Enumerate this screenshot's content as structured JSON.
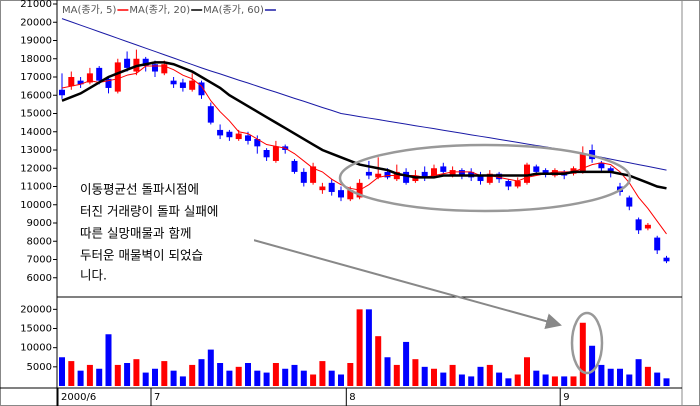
{
  "chart_data": [
    {
      "type": "candlestick",
      "categories": [
        "2000/6",
        null,
        null,
        null,
        null,
        null,
        null,
        null,
        null,
        null,
        "7",
        null,
        null,
        null,
        null,
        null,
        null,
        null,
        null,
        null,
        null,
        null,
        null,
        null,
        null,
        null,
        null,
        null,
        null,
        null,
        null,
        "8",
        null,
        null,
        null,
        null,
        null,
        null,
        null,
        null,
        null,
        null,
        null,
        null,
        null,
        null,
        null,
        null,
        null,
        null,
        null,
        null,
        null,
        null,
        "9",
        null,
        null,
        null,
        null,
        null,
        null,
        null,
        null,
        null,
        null,
        null
      ],
      "open": [
        16300,
        16500,
        16800,
        16700,
        17500,
        16900,
        16200,
        18000,
        17300,
        18000,
        17700,
        17200,
        16800,
        16700,
        16300,
        16700,
        15400,
        14100,
        14000,
        13600,
        13800,
        13600,
        13000,
        12400,
        13200,
        12400,
        11800,
        11200,
        10800,
        11200,
        10800,
        10300,
        10400,
        11800,
        11500,
        11800,
        11400,
        11800,
        11300,
        11800,
        11600,
        12100,
        11600,
        11900,
        11800,
        11600,
        11200,
        11700,
        11300,
        11000,
        11200,
        12100,
        11900,
        11600,
        11800,
        11700,
        11800,
        13000,
        12300,
        12000,
        11000,
        10400,
        9200,
        8700,
        8200,
        7100
      ],
      "high": [
        17200,
        17300,
        17000,
        17500,
        17600,
        17000,
        18000,
        18400,
        18500,
        18100,
        17900,
        17900,
        17000,
        16900,
        17200,
        16800,
        15600,
        14400,
        14100,
        14100,
        14000,
        13800,
        13100,
        13500,
        13300,
        12500,
        12000,
        12300,
        11200,
        11400,
        11000,
        11000,
        11400,
        12400,
        12600,
        12000,
        12200,
        12000,
        11900,
        12100,
        12200,
        12300,
        12100,
        12000,
        12000,
        11800,
        11900,
        11800,
        11400,
        11500,
        12300,
        12200,
        12000,
        12000,
        11900,
        12100,
        13200,
        13300,
        12400,
        12100,
        11200,
        10500,
        9300,
        9000,
        8300,
        7200
      ],
      "low": [
        15800,
        16300,
        16400,
        16600,
        16600,
        16100,
        16100,
        17300,
        17100,
        17300,
        17000,
        17100,
        16400,
        16200,
        16200,
        15800,
        14400,
        13600,
        13500,
        13500,
        13300,
        12800,
        12400,
        12300,
        12800,
        11700,
        11000,
        11100,
        10600,
        10500,
        10200,
        10200,
        10300,
        11400,
        11400,
        11400,
        11300,
        11100,
        11200,
        11300,
        11500,
        11700,
        11500,
        11400,
        11300,
        11100,
        11100,
        11200,
        10800,
        10900,
        11100,
        11600,
        11500,
        11500,
        11400,
        11600,
        11700,
        12300,
        11800,
        11500,
        10500,
        9700,
        8400,
        8600,
        7300,
        6800
      ],
      "close": [
        16000,
        17000,
        16600,
        17200,
        16800,
        16400,
        17800,
        17500,
        18000,
        17600,
        17300,
        17700,
        16600,
        16400,
        16800,
        16000,
        14500,
        13800,
        13700,
        13900,
        13500,
        13200,
        12600,
        13200,
        13000,
        11800,
        11200,
        12100,
        11000,
        10700,
        10400,
        10800,
        11200,
        11600,
        11700,
        11500,
        11800,
        11200,
        11600,
        11500,
        12000,
        11800,
        11900,
        11600,
        11500,
        11300,
        11700,
        11400,
        11000,
        11300,
        12200,
        11800,
        11700,
        11900,
        11600,
        12000,
        12800,
        12500,
        12000,
        11800,
        10700,
        9900,
        8600,
        8900,
        7500,
        6900
      ],
      "up_color": "#ff0000",
      "down_color": "#0000ff",
      "series": [
        {
          "name": "MA(종가, 5)",
          "color": "#ff0000",
          "values": [
            16400,
            16500,
            16600,
            16800,
            16700,
            16800,
            16900,
            17100,
            17200,
            17600,
            17600,
            17600,
            17400,
            17100,
            16900,
            16500,
            15700,
            15100,
            14600,
            14000,
            13900,
            13600,
            13300,
            13200,
            13100,
            12800,
            12400,
            12000,
            11800,
            11400,
            11100,
            10900,
            10800,
            11100,
            11500,
            11600,
            11600,
            11600,
            11600,
            11500,
            11600,
            11700,
            11800,
            11800,
            11800,
            11600,
            11600,
            11500,
            11400,
            11300,
            11500,
            11600,
            11700,
            11800,
            11800,
            11800,
            12000,
            12200,
            12300,
            12200,
            11800,
            11200,
            10400,
            9800,
            9100,
            8400
          ]
        },
        {
          "name": "MA(종가, 20)",
          "color": "#000000",
          "values": [
            15700,
            15900,
            16100,
            16400,
            16700,
            17000,
            17200,
            17400,
            17600,
            17700,
            17800,
            17800,
            17700,
            17500,
            17300,
            17000,
            16700,
            16400,
            16000,
            15700,
            15400,
            15100,
            14800,
            14500,
            14200,
            13900,
            13600,
            13300,
            13000,
            12800,
            12600,
            12400,
            12200,
            12100,
            12000,
            11900,
            11700,
            11600,
            11500,
            11500,
            11500,
            11600,
            11600,
            11600,
            11600,
            11600,
            11600,
            11600,
            11600,
            11600,
            11600,
            11700,
            11700,
            11700,
            11700,
            11800,
            11800,
            11800,
            11800,
            11800,
            11700,
            11600,
            11400,
            11200,
            11000,
            10900
          ]
        },
        {
          "name": "MA(종가, 60)",
          "color": "#1a1aa6",
          "values": [
            20200,
            20020,
            19840,
            19660,
            19480,
            19300,
            19120,
            18940,
            18760,
            18580,
            18400,
            18220,
            18040,
            17860,
            17680,
            17500,
            17330,
            17170,
            17000,
            16830,
            16670,
            16500,
            16330,
            16170,
            16000,
            15830,
            15670,
            15500,
            15330,
            15170,
            15000,
            14920,
            14830,
            14750,
            14670,
            14580,
            14500,
            14420,
            14330,
            14250,
            14170,
            14080,
            14000,
            13920,
            13830,
            13750,
            13670,
            13580,
            13500,
            13420,
            13330,
            13250,
            13170,
            13080,
            13000,
            12900,
            12800,
            12700,
            12600,
            12500,
            12400,
            12300,
            12200,
            12100,
            12000,
            11900
          ]
        }
      ],
      "ylim": [
        5000,
        21000
      ],
      "yticks": [
        6000,
        7000,
        8000,
        9000,
        10000,
        11000,
        12000,
        13000,
        14000,
        15000,
        16000,
        17000,
        18000,
        19000,
        20000,
        21000
      ],
      "annotation": [
        "이동평균선 돌파시점에",
        "터진 거래량이 돌파 실패에",
        "따른 실망매물과 함께",
        "두터운 매물벽이 되었습",
        "니다."
      ]
    },
    {
      "type": "bar",
      "values": [
        7500,
        6500,
        4000,
        5500,
        4500,
        13500,
        5500,
        6000,
        7000,
        3500,
        4500,
        6500,
        4000,
        2500,
        5500,
        7000,
        9500,
        6000,
        4000,
        5000,
        6000,
        4000,
        3500,
        6000,
        4500,
        5500,
        4000,
        3000,
        6500,
        4000,
        3000,
        6000,
        20000,
        20000,
        13000,
        7500,
        5500,
        11500,
        7000,
        5000,
        4500,
        3500,
        5500,
        3000,
        2500,
        5000,
        5500,
        3500,
        2000,
        3000,
        7500,
        4000,
        3000,
        2500,
        2500,
        2500,
        16500,
        10500,
        5500,
        4500,
        4500,
        3000,
        7000,
        5000,
        3500,
        2000
      ],
      "ylim": [
        0,
        22700
      ],
      "yticks": [
        5000,
        10000,
        15000,
        20000
      ]
    }
  ]
}
